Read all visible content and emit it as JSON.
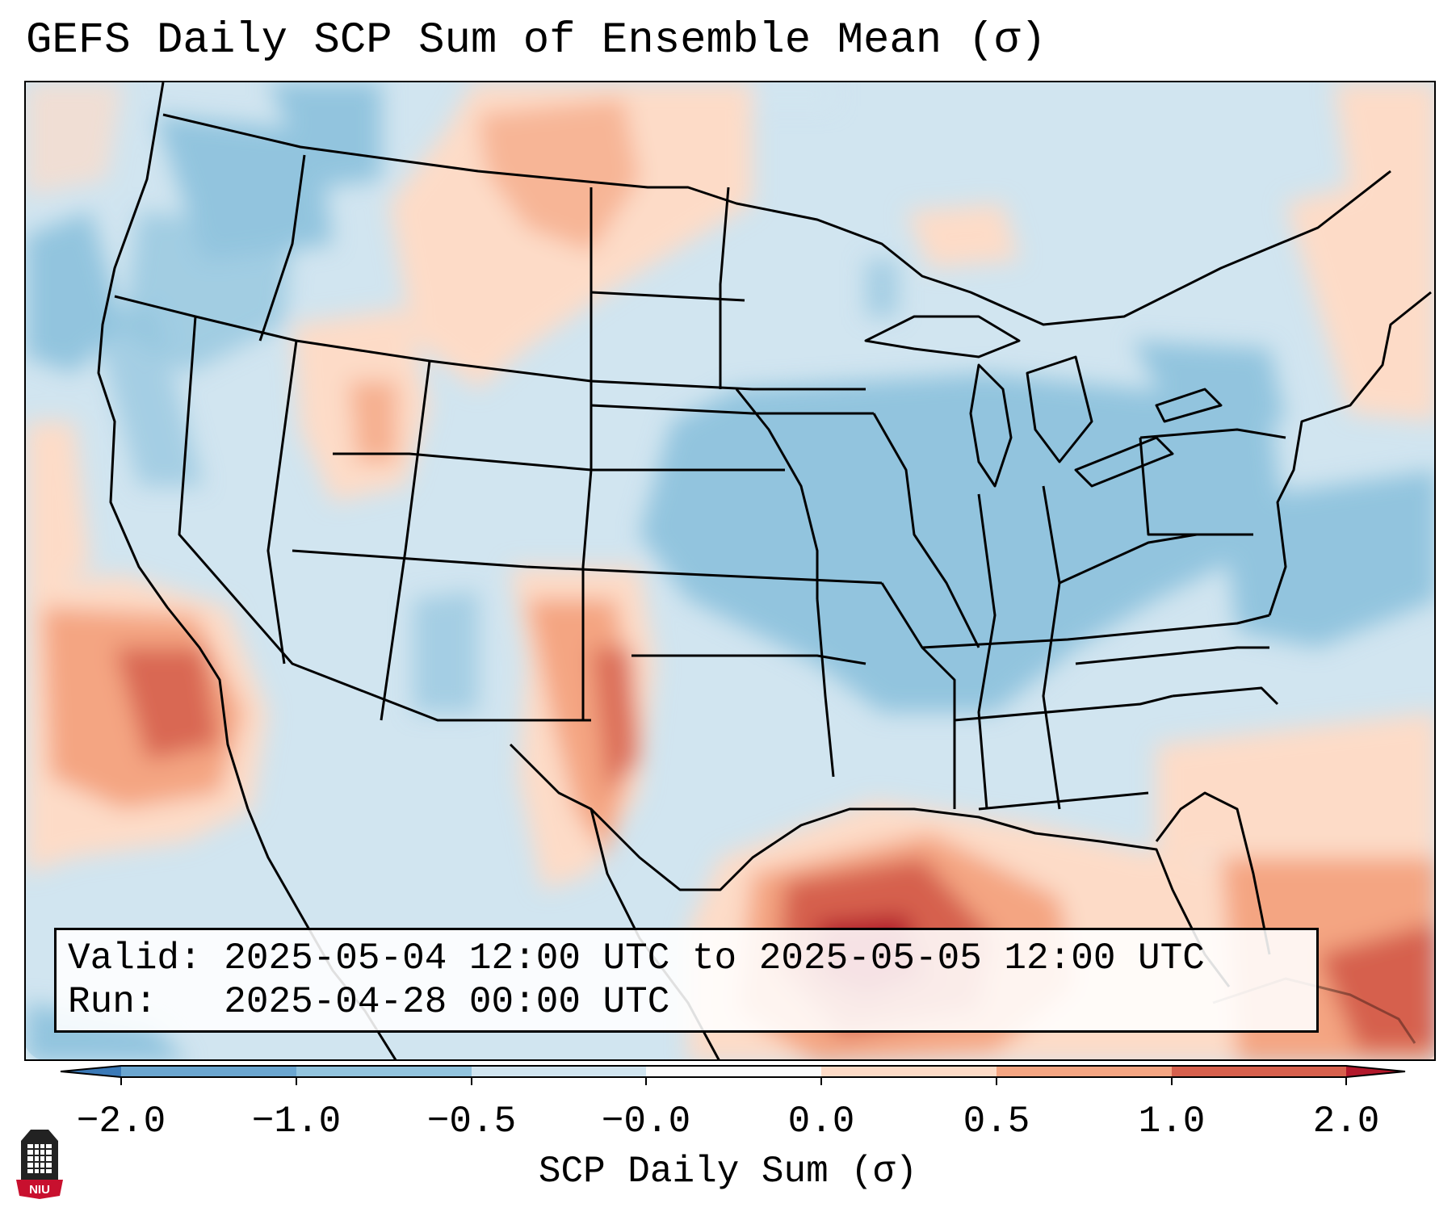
{
  "title": "GEFS Daily SCP Sum of Ensemble Mean (σ)",
  "info": {
    "valid_label": "Valid:",
    "valid_value": "2025-05-04 12:00 UTC to 2025-05-05 12:00 UTC",
    "run_label": "Run:",
    "run_value": "2025-04-28 00:00 UTC"
  },
  "colorbar": {
    "label": "SCP Daily Sum (σ)",
    "ticks": [
      "−2.0",
      "−1.0",
      "−0.5",
      "−0.0",
      "0.0",
      "0.5",
      "1.0",
      "2.0"
    ],
    "bins": [
      "#3a79b7",
      "#6ba6d0",
      "#92c4de",
      "#d1e5f0",
      "#fbfbfb",
      "#fddbc7",
      "#f4a582",
      "#d6604d",
      "#b2182b"
    ]
  },
  "logo": {
    "icon": "niu-logo-icon",
    "text": "NIU"
  }
}
